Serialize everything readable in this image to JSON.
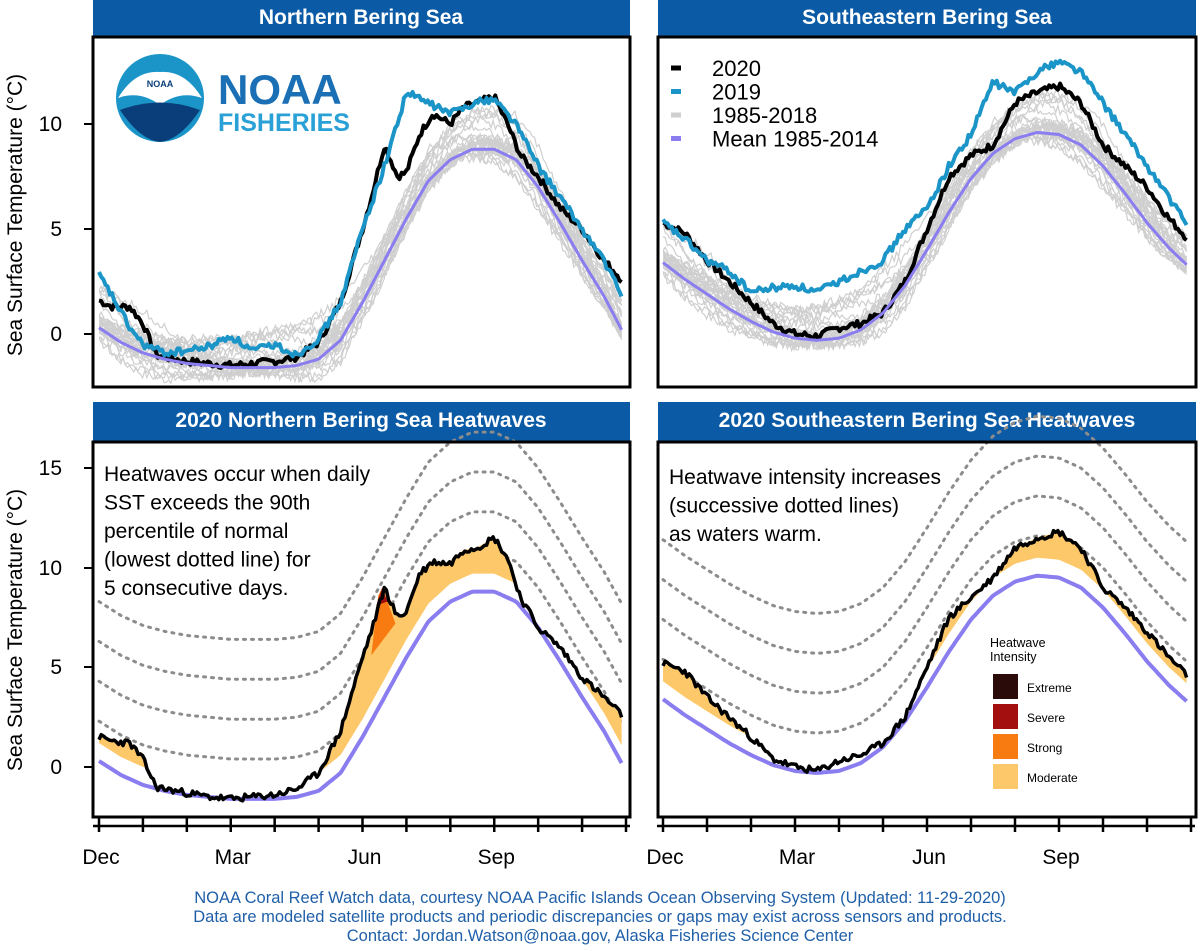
{
  "panels": [
    {
      "title": "Northern Bering Sea"
    },
    {
      "title": "Southeastern Bering Sea"
    },
    {
      "title": "2020 Northern Bering Sea Heatwaves"
    },
    {
      "title": "2020 Southeastern Bering Sea Heatwaves"
    }
  ],
  "ylabel": "Sea Surface Temperature (°C)",
  "logo": {
    "line1": "NOAA",
    "line2": "FISHERIES",
    "badge": "NOAA"
  },
  "legend": [
    {
      "label": "2020",
      "color": "#000000"
    },
    {
      "label": "2019",
      "color": "#1b95c8"
    },
    {
      "label": "1985-2018",
      "color": "#cfcfcf"
    },
    {
      "label": "Mean 1985-2014",
      "color": "#8a7df0"
    }
  ],
  "annotations": {
    "north": [
      "Heatwaves occur when daily",
      "SST exceeds the 90th",
      "percentile of normal",
      "(lowest dotted line) for",
      "5 consecutive days."
    ],
    "south": [
      "Heatwave intensity increases",
      "(successive dotted lines)",
      "as waters warm."
    ]
  },
  "heatwave_legend": {
    "title": [
      "Heatwave",
      "Intensity"
    ],
    "items": [
      {
        "label": "Extreme",
        "color": "#2b0a0a"
      },
      {
        "label": "Severe",
        "color": "#a30f0f"
      },
      {
        "label": "Strong",
        "color": "#f77b10"
      },
      {
        "label": "Moderate",
        "color": "#fdc86a"
      }
    ]
  },
  "footer": [
    "NOAA Coral Reef Watch data, courtesy NOAA Pacific Islands Ocean Observing System (Updated: 11-29-2020)",
    "Data are modeled satellite products and periodic discrepancies or gaps may exist across sensors and products.",
    "Contact: Jordan.Watson@noaa.gov, Alaska Fisheries Science Center"
  ],
  "chart_data": [
    {
      "type": "line",
      "title": "Northern Bering Sea",
      "ylabel": "Sea Surface Temperature (°C)",
      "x_tick_labels": [
        "Dec",
        "Mar",
        "Jun",
        "Sep"
      ],
      "y_ticks": [
        0,
        5,
        10
      ],
      "ylim": [
        -2,
        14
      ],
      "x_unit": "month index from Dec (0=Dec 1, 12=end of Nov)",
      "series": [
        {
          "name": "2020",
          "color": "#000000",
          "x": [
            0,
            0.3,
            0.7,
            1.0,
            1.3,
            1.5,
            2,
            2.5,
            3,
            3.5,
            4,
            4.5,
            5,
            5.5,
            6,
            6.2,
            6.5,
            6.8,
            7,
            7.3,
            7.6,
            8,
            8.3,
            8.6,
            9,
            9.3,
            9.6,
            10,
            10.5,
            11,
            11.5,
            11.9
          ],
          "y": [
            1.6,
            1.3,
            1.3,
            0.5,
            -1.0,
            -1.1,
            -1.3,
            -1.4,
            -1.5,
            -1.4,
            -1.3,
            -1.1,
            -0.4,
            1.5,
            5.0,
            6.5,
            9.0,
            7.5,
            7.7,
            9.5,
            10.5,
            10.0,
            10.8,
            11.0,
            11.3,
            10.0,
            8.5,
            7.5,
            6.0,
            5.0,
            3.5,
            2.6
          ]
        },
        {
          "name": "2019",
          "color": "#1b95c8",
          "x": [
            0,
            0.3,
            0.7,
            1.0,
            1.5,
            2,
            2.5,
            3,
            3.5,
            4,
            4.5,
            5,
            5.5,
            6,
            6.5,
            7,
            7.5,
            8,
            8.5,
            9,
            9.5,
            10,
            10.5,
            11,
            11.5,
            11.9
          ],
          "y": [
            2.8,
            1.8,
            0.3,
            -0.5,
            -0.9,
            -0.8,
            -0.6,
            -0.1,
            -0.8,
            -0.5,
            -1.0,
            -0.2,
            1.5,
            5.0,
            8.0,
            11.5,
            11.0,
            10.5,
            11.0,
            11.2,
            10.0,
            8.0,
            6.5,
            5.0,
            3.5,
            1.8
          ]
        },
        {
          "name": "Mean 1985-2014",
          "color": "#8a7df0",
          "x": [
            0,
            0.5,
            1,
            1.5,
            2,
            2.5,
            3,
            3.5,
            4,
            4.5,
            5,
            5.5,
            6,
            6.5,
            7,
            7.5,
            8,
            8.5,
            9,
            9.5,
            10,
            10.5,
            11,
            11.5,
            11.9
          ],
          "y": [
            0.3,
            -0.4,
            -0.9,
            -1.2,
            -1.4,
            -1.5,
            -1.6,
            -1.6,
            -1.6,
            -1.5,
            -1.2,
            -0.3,
            1.5,
            3.5,
            5.5,
            7.3,
            8.3,
            8.8,
            8.8,
            8.3,
            7.0,
            5.3,
            3.5,
            1.8,
            0.2
          ]
        }
      ]
    },
    {
      "type": "line",
      "title": "Southeastern Bering Sea",
      "x_tick_labels": [
        "Dec",
        "Mar",
        "Jun",
        "Sep"
      ],
      "ylim": [
        -2,
        14
      ],
      "series": [
        {
          "name": "2020",
          "color": "#000000",
          "x": [
            0,
            0.5,
            1,
            1.5,
            2,
            2.5,
            3,
            3.5,
            4,
            4.5,
            5,
            5.5,
            6,
            6.5,
            7,
            7.5,
            8,
            8.5,
            9,
            9.5,
            10,
            10.5,
            11,
            11.5,
            11.9
          ],
          "y": [
            5.3,
            4.8,
            3.5,
            2.5,
            1.5,
            0.5,
            0.0,
            -0.1,
            0.3,
            0.5,
            1.0,
            2.5,
            5.0,
            7.5,
            8.5,
            9.0,
            11.0,
            11.5,
            11.8,
            11.0,
            9.0,
            8.0,
            7.0,
            5.5,
            4.6
          ]
        },
        {
          "name": "2019",
          "color": "#1b95c8",
          "x": [
            0,
            0.5,
            1,
            1.5,
            2,
            2.5,
            3,
            3.5,
            4,
            4.5,
            5,
            5.5,
            6,
            6.5,
            7,
            7.5,
            8,
            8.5,
            9,
            9.5,
            10,
            10.5,
            11,
            11.5,
            11.9
          ],
          "y": [
            5.3,
            4.5,
            3.5,
            3.0,
            2.0,
            2.2,
            2.3,
            2.0,
            2.5,
            3.0,
            3.5,
            5.0,
            6.0,
            8.0,
            9.5,
            12.0,
            11.5,
            12.5,
            13.0,
            12.5,
            11.0,
            9.5,
            8.0,
            6.5,
            5.2
          ]
        },
        {
          "name": "Mean 1985-2014",
          "color": "#8a7df0",
          "x": [
            0,
            0.5,
            1,
            1.5,
            2,
            2.5,
            3,
            3.5,
            4,
            4.5,
            5,
            5.5,
            6,
            6.5,
            7,
            7.5,
            8,
            8.5,
            9,
            9.5,
            10,
            10.5,
            11,
            11.5,
            11.9
          ],
          "y": [
            3.4,
            2.6,
            1.9,
            1.2,
            0.6,
            0.1,
            -0.2,
            -0.3,
            -0.2,
            0.2,
            1.0,
            2.3,
            4.0,
            5.8,
            7.4,
            8.6,
            9.3,
            9.6,
            9.5,
            9.0,
            8.0,
            6.7,
            5.3,
            4.1,
            3.3
          ]
        }
      ]
    },
    {
      "type": "area",
      "title": "2020 Northern Bering Sea Heatwaves",
      "ylabel": "Sea Surface Temperature (°C)",
      "x_tick_labels": [
        "Dec",
        "Mar",
        "Jun",
        "Sep"
      ],
      "y_ticks": [
        0,
        5,
        10,
        15
      ],
      "ylim": [
        -2.5,
        16
      ],
      "series": [
        {
          "name": "2020",
          "color": "#000000",
          "x": [
            0,
            0.3,
            0.7,
            1.0,
            1.3,
            1.5,
            2,
            2.5,
            3,
            3.5,
            4,
            4.5,
            5,
            5.5,
            6,
            6.2,
            6.5,
            6.8,
            7,
            7.3,
            7.6,
            8,
            8.3,
            8.6,
            9,
            9.3,
            9.6,
            10,
            10.5,
            11,
            11.5,
            11.9
          ],
          "y": [
            1.5,
            1.3,
            1.2,
            0.4,
            -1.0,
            -1.1,
            -1.3,
            -1.5,
            -1.6,
            -1.5,
            -1.4,
            -1.1,
            -0.3,
            1.8,
            5.5,
            6.8,
            9.0,
            7.5,
            7.8,
            9.7,
            10.3,
            10.2,
            10.9,
            11.0,
            11.5,
            10.5,
            8.5,
            7.0,
            6.0,
            4.5,
            3.5,
            2.6
          ]
        },
        {
          "name": "Mean 1985-2014",
          "color": "#8a7df0",
          "x": [
            0,
            0.5,
            1,
            1.5,
            2,
            2.5,
            3,
            3.5,
            4,
            4.5,
            5,
            5.5,
            6,
            6.5,
            7,
            7.5,
            8,
            8.5,
            9,
            9.5,
            10,
            10.5,
            11,
            11.5,
            11.9
          ],
          "y": [
            0.3,
            -0.4,
            -0.9,
            -1.2,
            -1.4,
            -1.5,
            -1.6,
            -1.6,
            -1.6,
            -1.5,
            -1.2,
            -0.3,
            1.5,
            3.5,
            5.5,
            7.3,
            8.3,
            8.8,
            8.8,
            8.3,
            7.0,
            5.3,
            3.5,
            1.8,
            0.2
          ]
        }
      ]
    },
    {
      "type": "area",
      "title": "2020 Southeastern Bering Sea Heatwaves",
      "x_tick_labels": [
        "Dec",
        "Mar",
        "Jun",
        "Sep"
      ],
      "ylim": [
        -2.5,
        16
      ],
      "series": [
        {
          "name": "2020",
          "color": "#000000",
          "x": [
            0,
            0.5,
            1,
            1.5,
            2,
            2.5,
            3,
            3.5,
            4,
            4.5,
            5,
            5.5,
            6,
            6.5,
            7,
            7.5,
            8,
            8.5,
            9,
            9.5,
            10,
            10.5,
            11,
            11.5,
            11.9
          ],
          "y": [
            5.2,
            4.8,
            3.5,
            2.5,
            1.5,
            0.4,
            0.0,
            -0.2,
            0.3,
            0.6,
            1.2,
            2.5,
            5.0,
            7.5,
            8.5,
            9.5,
            11.0,
            11.5,
            11.8,
            11.0,
            9.0,
            8.0,
            6.8,
            5.5,
            4.6
          ]
        },
        {
          "name": "Mean 1985-2014",
          "color": "#8a7df0",
          "x": [
            0,
            0.5,
            1,
            1.5,
            2,
            2.5,
            3,
            3.5,
            4,
            4.5,
            5,
            5.5,
            6,
            6.5,
            7,
            7.5,
            8,
            8.5,
            9,
            9.5,
            10,
            10.5,
            11,
            11.5,
            11.9
          ],
          "y": [
            3.4,
            2.6,
            1.9,
            1.2,
            0.6,
            0.1,
            -0.2,
            -0.3,
            -0.2,
            0.2,
            1.0,
            2.3,
            4.0,
            5.8,
            7.4,
            8.6,
            9.3,
            9.6,
            9.5,
            9.0,
            8.0,
            6.7,
            5.3,
            4.1,
            3.3
          ]
        }
      ]
    }
  ]
}
